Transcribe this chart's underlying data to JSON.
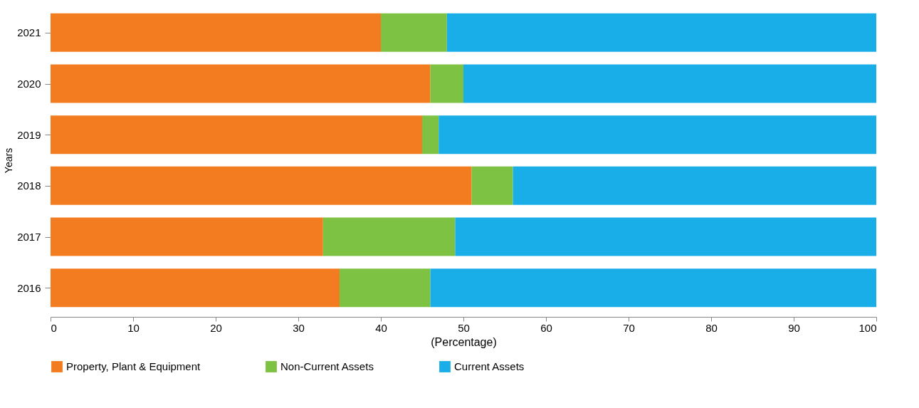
{
  "chart_data": {
    "type": "bar",
    "orientation": "horizontal",
    "stacked": true,
    "xlabel": "(Percentage)",
    "ylabel": "Years",
    "categories": [
      "2021",
      "2020",
      "2019",
      "2018",
      "2017",
      "2016"
    ],
    "series": [
      {
        "name": "Property, Plant & Equipment",
        "color": "#f47c20",
        "values": [
          40,
          46,
          45,
          51,
          33,
          35
        ]
      },
      {
        "name": "Non-Current Assets",
        "color": "#7dc242",
        "values": [
          8,
          4,
          2,
          5,
          16,
          11
        ]
      },
      {
        "name": "Current Assets",
        "color": "#1aaee8",
        "values": [
          52,
          50,
          53,
          44,
          51,
          54
        ]
      }
    ],
    "xlim": [
      0,
      100
    ],
    "xticks": [
      0,
      10,
      20,
      30,
      40,
      50,
      60,
      70,
      80,
      90,
      100
    ],
    "grid": false,
    "legend": "bottom"
  }
}
